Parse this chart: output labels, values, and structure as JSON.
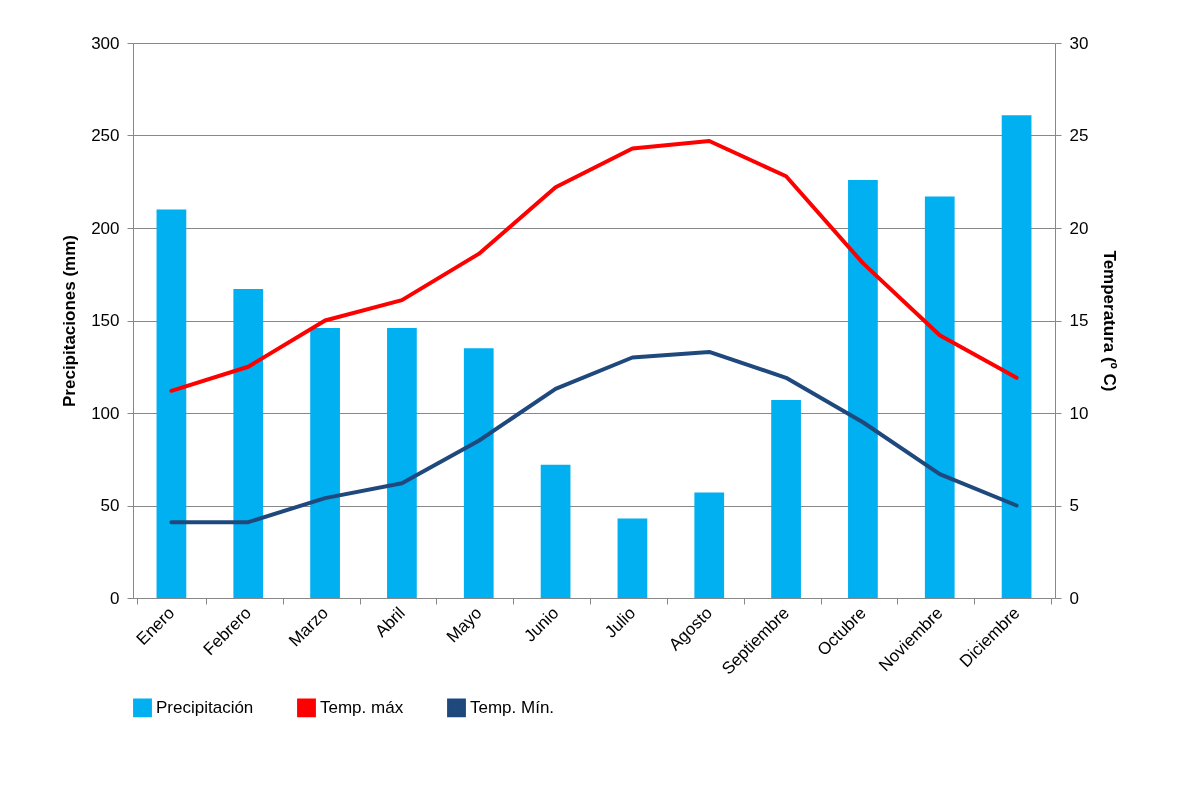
{
  "chart_data": {
    "type": "bar",
    "xlabel": null,
    "ylabel": "Precipitaciones (mm)",
    "y2label": "Temperatura (º C)",
    "categories": [
      "Enero",
      "Febrero",
      "Marzo",
      "Abril",
      "Mayo",
      "Junio",
      "Julio",
      "Agosto",
      "Septiembre",
      "Octubre",
      "Noviembre",
      "Diciembre"
    ],
    "series": [
      {
        "name": "Precipitación",
        "color": "#00b0f0",
        "values": [
          210,
          167,
          146,
          146,
          135,
          72,
          43,
          57,
          107,
          226,
          217,
          261
        ]
      },
      {
        "name": "Temp. máx",
        "type": "line",
        "axis": "y2",
        "color": "#ff0000",
        "values": [
          11.2,
          12.5,
          15.0,
          16.1,
          18.6,
          22.2,
          24.3,
          24.7,
          22.8,
          18.1,
          14.2,
          11.9
        ]
      },
      {
        "name": "Temp. Mín.",
        "type": "line",
        "axis": "y2",
        "color": "#1f497d",
        "values": [
          4.1,
          4.1,
          5.4,
          6.2,
          8.5,
          11.3,
          13.0,
          13.3,
          11.9,
          9.5,
          6.7,
          5.0
        ]
      }
    ],
    "ylim": [
      0,
      300
    ],
    "yticks": [
      0,
      50,
      100,
      150,
      200,
      250,
      300
    ],
    "y2lim": [
      0,
      30
    ],
    "y2ticks": [
      0,
      5,
      10,
      15,
      20,
      25,
      30
    ],
    "grid": "y",
    "legend": "bottom",
    "marker": "none",
    "line_style": "solid"
  }
}
